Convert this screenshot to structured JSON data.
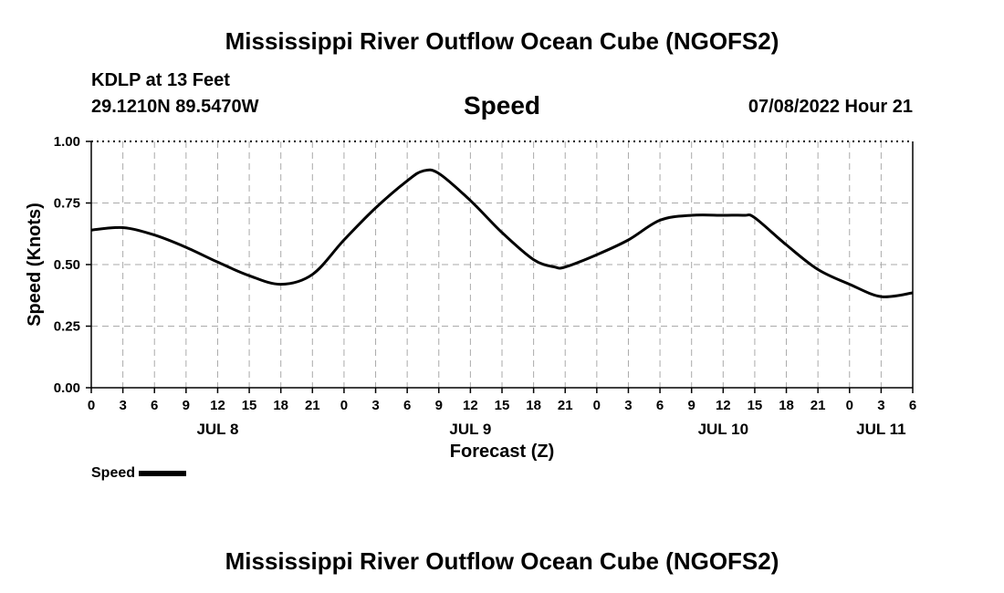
{
  "header": {
    "title": "Mississippi River Outflow Ocean Cube (NGOFS2)",
    "station": "KDLP at 13 Feet",
    "coords": "29.1210N  89.5470W",
    "subtitle": "Speed",
    "datetime": "07/08/2022 Hour 21"
  },
  "footer": {
    "title": "Mississippi River Outflow Ocean Cube (NGOFS2)"
  },
  "legend": {
    "label": "Speed"
  },
  "chart_data": {
    "type": "line",
    "xlabel": "Forecast (Z)",
    "ylabel": "Speed (Knots)",
    "xlim": [
      0,
      78
    ],
    "ylim": [
      0,
      1
    ],
    "x_ticks": [
      0,
      3,
      6,
      9,
      12,
      15,
      18,
      21,
      24,
      27,
      30,
      33,
      36,
      39,
      42,
      45,
      48,
      51,
      54,
      57,
      60,
      63,
      66,
      69,
      72,
      75,
      78
    ],
    "x_tick_labels": [
      "0",
      "3",
      "6",
      "9",
      "12",
      "15",
      "18",
      "21",
      "0",
      "3",
      "6",
      "9",
      "12",
      "15",
      "18",
      "21",
      "0",
      "3",
      "6",
      "9",
      "12",
      "15",
      "18",
      "21",
      "0",
      "3",
      "6"
    ],
    "y_ticks": [
      0,
      0.25,
      0.5,
      0.75,
      1.0
    ],
    "y_tick_labels": [
      "0.00",
      "0.25",
      "0.50",
      "0.75",
      "1.00"
    ],
    "day_labels": [
      {
        "x": 12,
        "label": "JUL 8"
      },
      {
        "x": 36,
        "label": "JUL 9"
      },
      {
        "x": 60,
        "label": "JUL 10"
      },
      {
        "x": 75,
        "label": "JUL 11"
      }
    ],
    "grid": true,
    "series": [
      {
        "name": "Speed",
        "color": "#000000",
        "x": [
          0,
          3,
          6,
          9,
          12,
          15,
          18,
          21,
          24,
          27,
          30,
          31.5,
          33,
          36,
          39,
          42,
          44,
          45,
          48,
          51,
          54,
          57,
          60,
          62,
          63,
          66,
          69,
          72,
          75,
          78
        ],
        "y": [
          0.64,
          0.65,
          0.62,
          0.57,
          0.51,
          0.455,
          0.42,
          0.46,
          0.6,
          0.73,
          0.84,
          0.88,
          0.87,
          0.76,
          0.63,
          0.52,
          0.49,
          0.49,
          0.54,
          0.6,
          0.68,
          0.7,
          0.7,
          0.7,
          0.69,
          0.58,
          0.48,
          0.42,
          0.37,
          0.385
        ]
      }
    ]
  }
}
